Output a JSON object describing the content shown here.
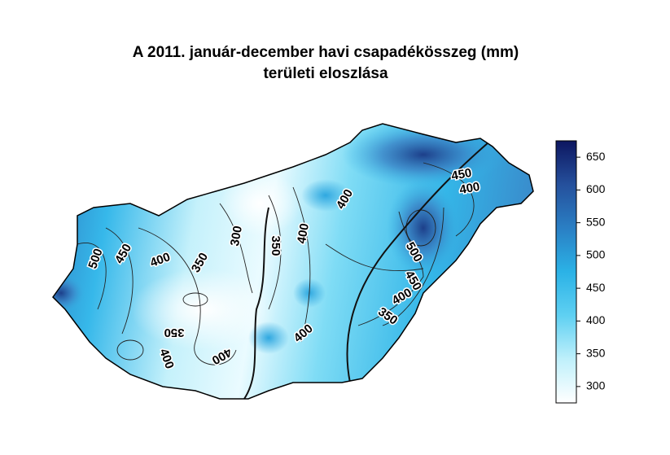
{
  "title": [
    "A 2011. január-december havi csapadékösszeg (mm)",
    "területi eloszlása"
  ],
  "colorbar": {
    "range": [
      275,
      675
    ],
    "ticks": [
      300,
      350,
      400,
      450,
      500,
      550,
      600,
      650
    ],
    "colors": [
      "#ffffff",
      "#bff0fb",
      "#5fd0f2",
      "#2bb2e6",
      "#2a7fc4",
      "#25509c",
      "#0d1660"
    ]
  },
  "contour_labels": [
    500,
    450,
    400,
    350,
    300,
    350,
    400,
    400,
    450,
    400,
    500,
    450,
    400,
    350,
    400,
    350,
    400,
    400
  ]
}
